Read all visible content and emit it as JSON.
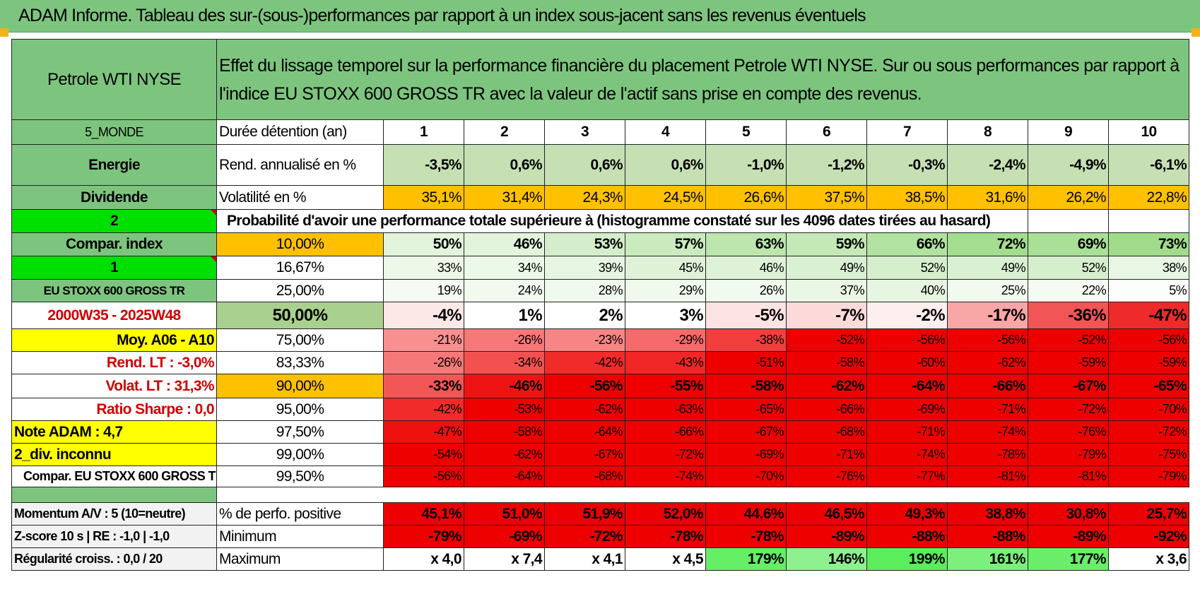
{
  "title": "ADAM Informe. Tableau des sur-(sous-)performances par rapport à un index sous-jacent sans les revenus éventuels",
  "asset_name": "Petrole WTI NYSE",
  "header_text": "Effet du lissage temporel sur la performance financière du placement Petrole WTI NYSE. Sur ou sous performances par rapport à l'indice EU STOXX 600 GROSS TR avec la valeur de l'actif sans prise en compte des revenus.",
  "left_labels": {
    "zone": "5_MONDE",
    "sector": "Energie",
    "dividend": "Dividende",
    "choice1": "2",
    "compar_index": "Compar. index",
    "choice2": "1",
    "index_name": "EU STOXX 600 GROSS TR",
    "period": "2000W35 - 2025W48",
    "moy": "Moy. A06 - A10",
    "rend_lt": "Rend. LT :    -3,0%",
    "volat_lt": "Volat. LT :    31,3%",
    "sharpe": "Ratio Sharpe :     0,0",
    "note": "Note ADAM : 4,7",
    "div_inconnu": "2_div. inconnu",
    "compar_full": "Compar. EU STOXX 600 GROSS TR"
  },
  "row_labels": {
    "duration": "Durée détention (an)",
    "rend": "Rend. annualisé en %",
    "vol": "Volatilité en %",
    "proba": "Probabilité d'avoir une performance totale supérieure à (histogramme constaté sur les 4096 dates tirées au hasard)"
  },
  "years": [
    "1",
    "2",
    "3",
    "4",
    "5",
    "6",
    "7",
    "8",
    "9",
    "10"
  ],
  "rend": [
    "-3,5%",
    "0,6%",
    "0,6%",
    "0,6%",
    "-1,0%",
    "-1,2%",
    "-0,3%",
    "-2,4%",
    "-4,9%",
    "-6,1%"
  ],
  "vol": [
    "35,1%",
    "31,4%",
    "24,3%",
    "24,5%",
    "26,6%",
    "37,5%",
    "38,5%",
    "31,6%",
    "26,2%",
    "22,8%"
  ],
  "quantile_rows": [
    {
      "q": "10,00%",
      "vals": [
        "50%",
        "46%",
        "53%",
        "57%",
        "63%",
        "59%",
        "66%",
        "72%",
        "69%",
        "73%"
      ],
      "colors": [
        "#e2f4dc",
        "#e2f4dc",
        "#d4eecb",
        "#c9ebbd",
        "#bce6ad",
        "#c4e9b7",
        "#b1e2a1",
        "#a3dd90",
        "#aadf98",
        "#a0dc8c"
      ]
    },
    {
      "q": "16,67%",
      "vals": [
        "33%",
        "34%",
        "39%",
        "45%",
        "46%",
        "49%",
        "52%",
        "49%",
        "52%",
        "38%"
      ],
      "colors": [
        "#edf8e9",
        "#ecf8e8",
        "#e7f6e2",
        "#dff2d8",
        "#ddf2d6",
        "#daf0d2",
        "#d5eecc",
        "#daf0d2",
        "#d5eecc",
        "#e8f6e3"
      ]
    },
    {
      "q": "25,00%",
      "vals": [
        "19%",
        "24%",
        "28%",
        "29%",
        "26%",
        "37%",
        "40%",
        "25%",
        "22%",
        "5%"
      ],
      "colors": [
        "#f5fbf3",
        "#f2faf0",
        "#f0f9ed",
        "#eff9ec",
        "#f1faee",
        "#eaf7e5",
        "#e7f6e1",
        "#f2faef",
        "#f4fbf2",
        "#fcfefb"
      ]
    },
    {
      "q": "50,00%",
      "vals": [
        "-4%",
        "1%",
        "2%",
        "3%",
        "-5%",
        "-7%",
        "-2%",
        "-17%",
        "-36%",
        "-47%"
      ],
      "colors": [
        "#fde8e8",
        "#ffffff",
        "#ffffff",
        "#ffffff",
        "#fde3e3",
        "#fcdada",
        "#feefef",
        "#f9a6a6",
        "#f25555",
        "#ee2a2a"
      ]
    },
    {
      "q": "75,00%",
      "vals": [
        "-21%",
        "-26%",
        "-23%",
        "-29%",
        "-38%",
        "-52%",
        "-56%",
        "-56%",
        "-52%",
        "-56%"
      ],
      "colors": [
        "#f89090",
        "#f67878",
        "#f78585",
        "#f56a6a",
        "#f23e3e",
        "#ee0000",
        "#ee0000",
        "#ee0000",
        "#ee0000",
        "#ee0000"
      ]
    },
    {
      "q": "83,33%",
      "vals": [
        "-26%",
        "-34%",
        "-42%",
        "-43%",
        "-51%",
        "-58%",
        "-60%",
        "-62%",
        "-59%",
        "-59%"
      ],
      "colors": [
        "#f67878",
        "#f35151",
        "#f12a2a",
        "#f12626",
        "#ee0000",
        "#ee0000",
        "#ee0000",
        "#ee0000",
        "#ee0000",
        "#ee0000"
      ]
    },
    {
      "q": "90,00%",
      "vals": [
        "-33%",
        "-46%",
        "-56%",
        "-55%",
        "-58%",
        "-62%",
        "-64%",
        "-66%",
        "-67%",
        "-65%"
      ],
      "colors": [
        "#f35656",
        "#ef1414",
        "#ee0000",
        "#ee0000",
        "#ee0000",
        "#ee0000",
        "#ee0000",
        "#ee0000",
        "#ee0000",
        "#ee0000"
      ]
    },
    {
      "q": "95,00%",
      "vals": [
        "-42%",
        "-53%",
        "-62%",
        "-63%",
        "-65%",
        "-66%",
        "-69%",
        "-71%",
        "-72%",
        "-70%"
      ],
      "colors": [
        "#f12a2a",
        "#ee0000",
        "#ee0000",
        "#ee0000",
        "#ee0000",
        "#ee0000",
        "#ee0000",
        "#ee0000",
        "#ee0000",
        "#ee0000"
      ]
    },
    {
      "q": "97,50%",
      "vals": [
        "-47%",
        "-58%",
        "-64%",
        "-66%",
        "-67%",
        "-68%",
        "-71%",
        "-74%",
        "-76%",
        "-72%"
      ],
      "colors": [
        "#ef1010",
        "#ee0000",
        "#ee0000",
        "#ee0000",
        "#ee0000",
        "#ee0000",
        "#ee0000",
        "#ee0000",
        "#ee0000",
        "#ee0000"
      ]
    },
    {
      "q": "99,00%",
      "vals": [
        "-54%",
        "-62%",
        "-67%",
        "-72%",
        "-69%",
        "-71%",
        "-74%",
        "-78%",
        "-79%",
        "-75%"
      ],
      "colors": [
        "#ee0000",
        "#ee0000",
        "#ee0000",
        "#ee0000",
        "#ee0000",
        "#ee0000",
        "#ee0000",
        "#ee0000",
        "#ee0000",
        "#ee0000"
      ]
    },
    {
      "q": "99,50%",
      "vals": [
        "-56%",
        "-64%",
        "-68%",
        "-74%",
        "-70%",
        "-76%",
        "-77%",
        "-81%",
        "-81%",
        "-79%"
      ],
      "colors": [
        "#ee0000",
        "#ee0000",
        "#ee0000",
        "#ee0000",
        "#ee0000",
        "#ee0000",
        "#ee0000",
        "#ee0000",
        "#ee0000",
        "#ee0000"
      ]
    }
  ],
  "bottom": {
    "momentum_label": "Momentum A/V : 5 (10=neutre)",
    "zscore_label": "Z-score 10 s | RE : -1,0 | -1,0",
    "regularite_label": "Régularité croiss. : 0,0 / 20",
    "pos_label": "% de perfo. positive",
    "min_label": "Minimum",
    "max_label": "Maximum",
    "pos": [
      "45,1%",
      "51,0%",
      "51,9%",
      "52,0%",
      "44,6%",
      "46,5%",
      "49,3%",
      "38,8%",
      "30,8%",
      "25,7%"
    ],
    "min": [
      "-79%",
      "-69%",
      "-72%",
      "-78%",
      "-78%",
      "-89%",
      "-88%",
      "-88%",
      "-89%",
      "-92%"
    ],
    "max": [
      "x 4,0",
      "x 7,4",
      "x 4,1",
      "x 4,5",
      "179%",
      "146%",
      "199%",
      "161%",
      "177%",
      "x 3,6"
    ],
    "max_colors": [
      "#ffffff",
      "#ffffff",
      "#ffffff",
      "#ffffff",
      "#66ee66",
      "#8ff08f",
      "#5ced5c",
      "#7cef7c",
      "#6aee6a",
      "#ffffff"
    ]
  },
  "colors": {
    "header_green": "#7dc57e",
    "light_green": "#c6e0b4",
    "orange": "#ffc000",
    "yellow": "#ffff00",
    "lime": "#00e000",
    "red": "#ee0000"
  }
}
